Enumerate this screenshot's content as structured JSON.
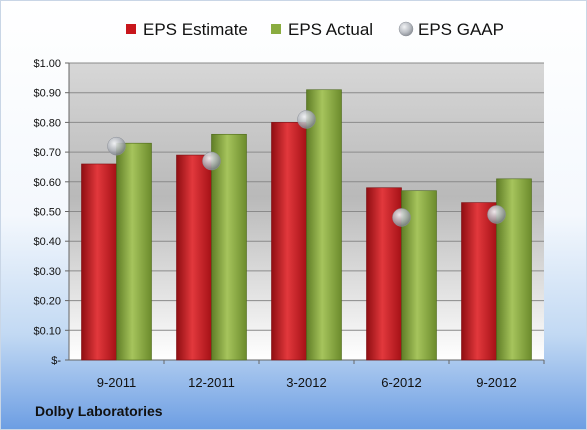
{
  "company": "Dolby Laboratories",
  "chart_data": {
    "type": "bar",
    "categories": [
      "9-2011",
      "12-2011",
      "3-2012",
      "6-2012",
      "9-2012"
    ],
    "series": [
      {
        "name": "EPS Estimate",
        "kind": "bar",
        "color": "#c0161c",
        "values": [
          0.66,
          0.69,
          0.8,
          0.58,
          0.53
        ]
      },
      {
        "name": "EPS Actual",
        "kind": "bar",
        "color": "#86a83c",
        "values": [
          0.73,
          0.76,
          0.91,
          0.57,
          0.61
        ]
      },
      {
        "name": "EPS GAAP",
        "kind": "marker",
        "color": "#b8bcc4",
        "values": [
          0.72,
          0.67,
          0.81,
          0.48,
          0.49
        ]
      }
    ],
    "yticks": [
      "$-",
      "$0.10",
      "$0.20",
      "$0.30",
      "$0.40",
      "$0.50",
      "$0.60",
      "$0.70",
      "$0.80",
      "$0.90",
      "$1.00"
    ],
    "ylim": [
      0,
      1.0
    ],
    "grid": true,
    "legend_position": "top"
  }
}
